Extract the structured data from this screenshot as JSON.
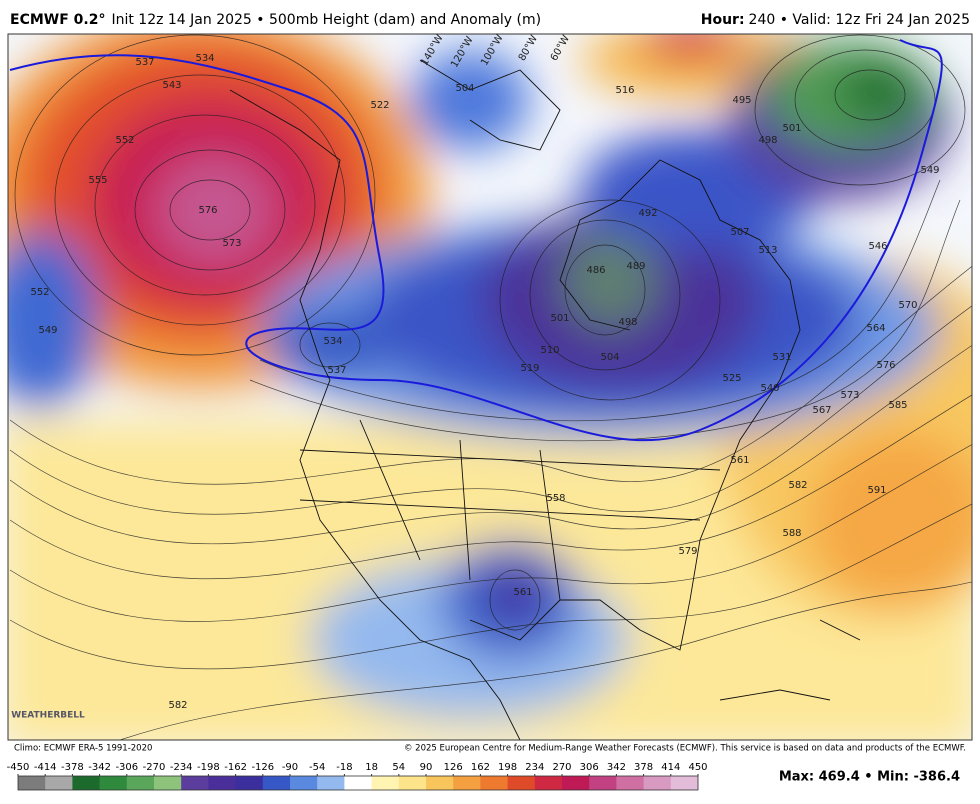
{
  "header": {
    "model": "ECMWF 0.2°",
    "init": "Init 12z 14 Jan 2025 • 500mb Height (dam) and Anomaly (m)",
    "hour_label": "Hour:",
    "hour_value": "240 • Valid: 12z Fri 24 Jan 2025"
  },
  "map": {
    "longitude_labels": [
      "140°W",
      "120°W",
      "100°W",
      "80°W",
      "60°W"
    ],
    "contour_labels": [
      "537",
      "534",
      "543",
      "552",
      "555",
      "576",
      "573",
      "552",
      "549",
      "522",
      "504",
      "516",
      "495",
      "498",
      "501",
      "492",
      "486",
      "489",
      "507",
      "513",
      "546",
      "549",
      "570",
      "564",
      "501",
      "510",
      "519",
      "498",
      "504",
      "531",
      "525",
      "540",
      "567",
      "573",
      "576",
      "585",
      "561",
      "558",
      "582",
      "588",
      "591",
      "579",
      "561",
      "582",
      "534",
      "537"
    ],
    "logo": "WEATHERBELL"
  },
  "footer": {
    "climo": "Climo: ECMWF ERA-5 1991-2020",
    "copyright": "© 2025 European Centre for Medium-Range Weather Forecasts (ECMWF). This service is based on data and products of the ECMWF.",
    "stats": "Max: 469.4 • Min: -386.4"
  },
  "colorbar": {
    "ticks": [
      -450,
      -414,
      -378,
      -342,
      -306,
      -270,
      -234,
      -198,
      -162,
      -126,
      -90,
      -54,
      -18,
      18,
      54,
      90,
      126,
      162,
      198,
      234,
      270,
      306,
      342,
      378,
      414,
      450
    ],
    "colors": [
      "#7c7c7c",
      "#a8a8a8",
      "#1d6b2c",
      "#2f8a3d",
      "#5aa65b",
      "#8ec37c",
      "#5b3d9e",
      "#4a2f9a",
      "#3b2f9e",
      "#3657c6",
      "#5a8ae0",
      "#94b9ee",
      "#ffffff",
      "#fff4b2",
      "#fde38a",
      "#f8c55c",
      "#f4a041",
      "#ee7a30",
      "#df4b29",
      "#cf2842",
      "#bf1a56",
      "#c24182",
      "#d070a2",
      "#d99ac2",
      "#e2bcd9"
    ]
  }
}
